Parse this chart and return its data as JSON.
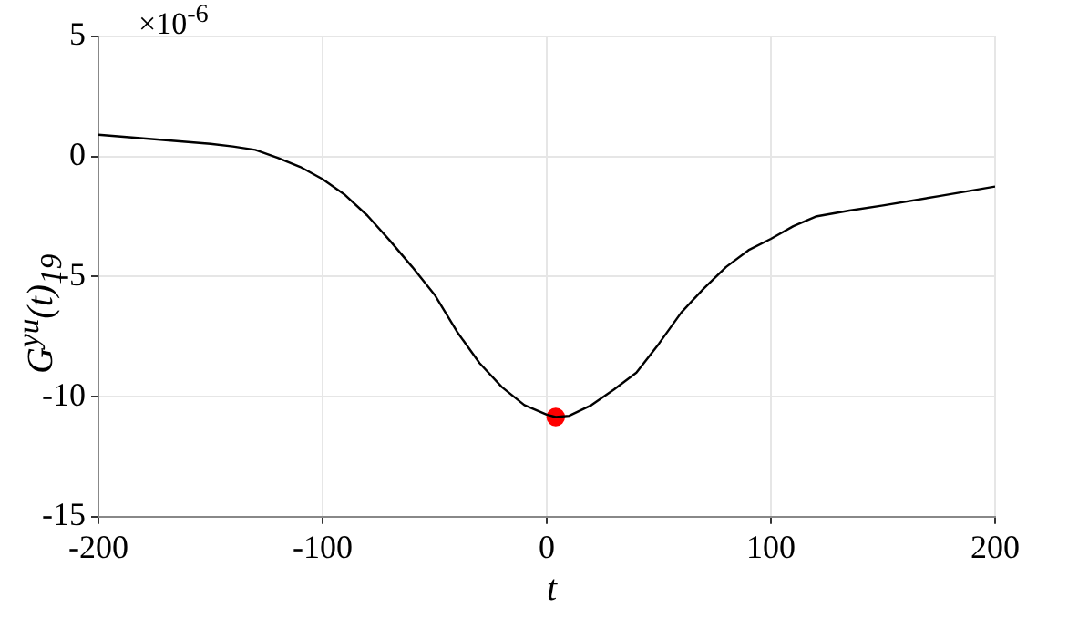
{
  "chart_data": {
    "type": "line",
    "xlabel": "t",
    "ylabel": "G$^{yu}$(t)$_{19}$",
    "annotations": [
      "×10$^{-6}$"
    ],
    "xlim": [
      -200,
      200
    ],
    "xticks": [
      -200,
      -100,
      0,
      100,
      200
    ],
    "ylim": [
      -15,
      5
    ],
    "yticks": [
      -15,
      -10,
      -5,
      0,
      5
    ],
    "grid": true,
    "legend": false,
    "series": [
      {
        "color": "#000000",
        "marker": "none",
        "x": [
          -200,
          -175,
          -150,
          -140,
          -130,
          -120,
          -110,
          -100,
          -90,
          -80,
          -70,
          -60,
          -50,
          -40,
          -30,
          -20,
          -10,
          0,
          4,
          10,
          20,
          30,
          40,
          50,
          60,
          70,
          80,
          90,
          100,
          110,
          120,
          135,
          150,
          175,
          200
        ],
        "values": [
          0.91,
          0.72,
          0.53,
          0.42,
          0.28,
          -0.05,
          -0.43,
          -0.94,
          -1.6,
          -2.46,
          -3.5,
          -4.6,
          -5.76,
          -7.3,
          -8.6,
          -9.6,
          -10.35,
          -10.75,
          -10.85,
          -10.8,
          -10.35,
          -9.7,
          -9.0,
          -7.8,
          -6.5,
          -5.5,
          -4.6,
          -3.9,
          -3.43,
          -2.9,
          -2.5,
          -2.25,
          -2.04,
          -1.65,
          -1.25
        ]
      },
      {
        "type": "scatter",
        "color": "#ff0000",
        "marker": "circle",
        "x": [
          4
        ],
        "values": [
          -10.85
        ]
      }
    ]
  }
}
